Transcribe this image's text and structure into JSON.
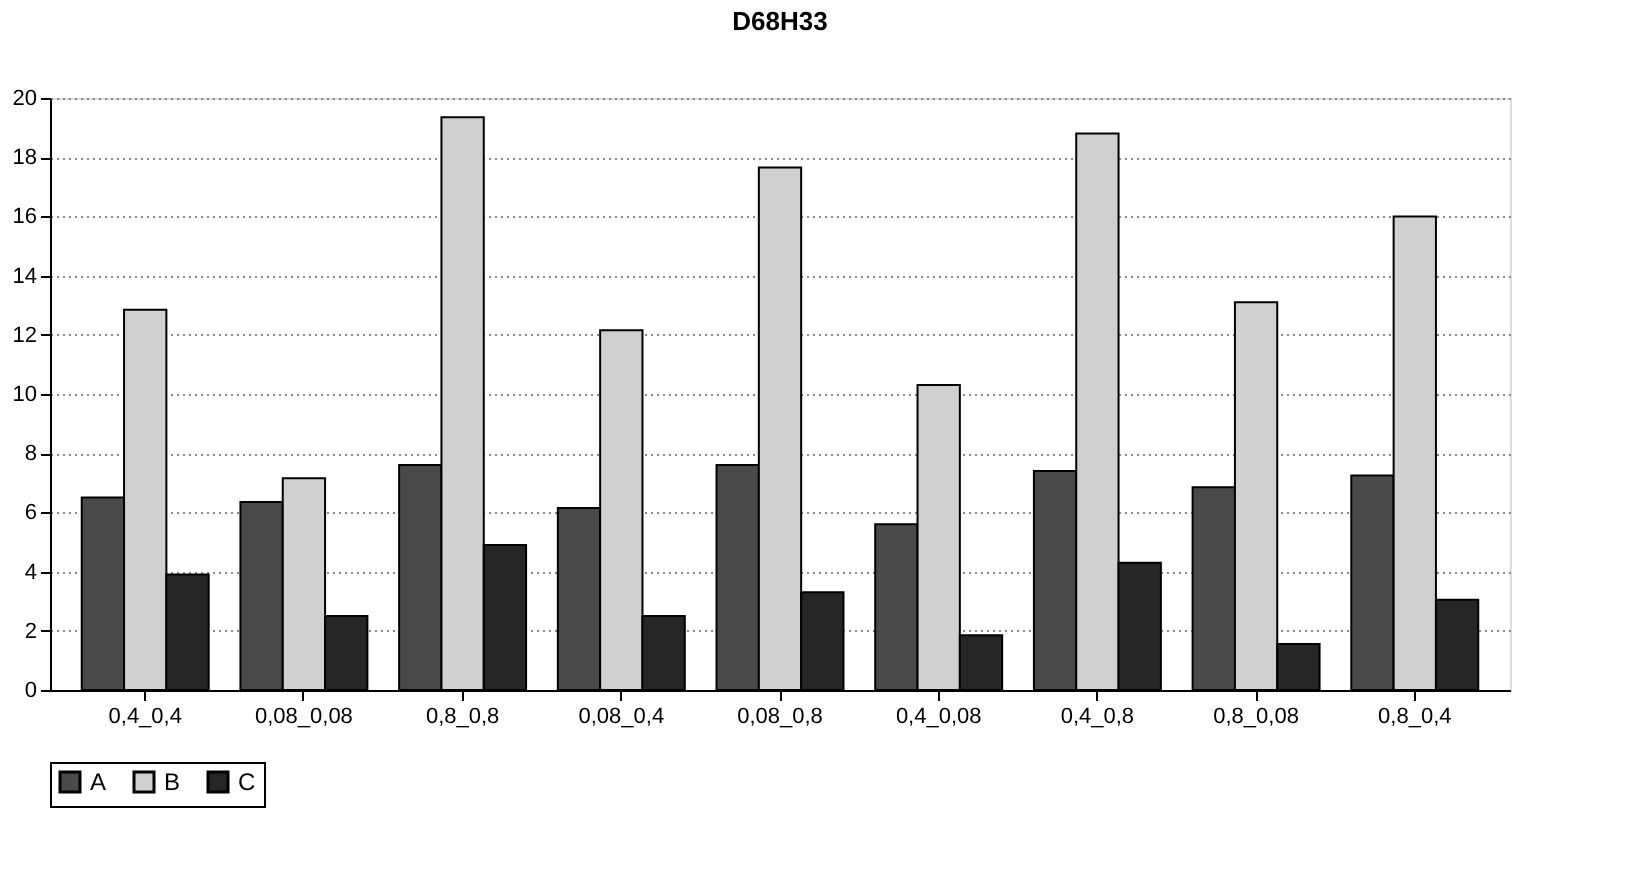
{
  "chart_data": {
    "type": "bar",
    "title": "D68H33",
    "categories": [
      "0,4_0,4",
      "0,08_0,08",
      "0,8_0,8",
      "0,08_0,4",
      "0,08_0,8",
      "0,4_0,08",
      "0,4_0,8",
      "0,8_0,08",
      "0,8_0,4"
    ],
    "series": [
      {
        "name": "A",
        "color": "#4a4a4a",
        "values": [
          6.5,
          6.35,
          7.6,
          6.15,
          7.6,
          5.6,
          7.4,
          6.85,
          7.25
        ]
      },
      {
        "name": "B",
        "color": "#d0d0d0",
        "values": [
          12.85,
          7.15,
          19.35,
          12.15,
          17.65,
          10.3,
          18.8,
          13.1,
          16.0
        ]
      },
      {
        "name": "C",
        "color": "#262626",
        "values": [
          3.9,
          2.5,
          4.9,
          2.5,
          3.3,
          1.85,
          4.3,
          1.55,
          3.05
        ]
      }
    ],
    "ylim": [
      0,
      20
    ],
    "yticks": [
      0,
      2,
      4,
      6,
      8,
      10,
      12,
      14,
      16,
      18,
      20
    ],
    "grid": "y",
    "legend": "bottom"
  }
}
